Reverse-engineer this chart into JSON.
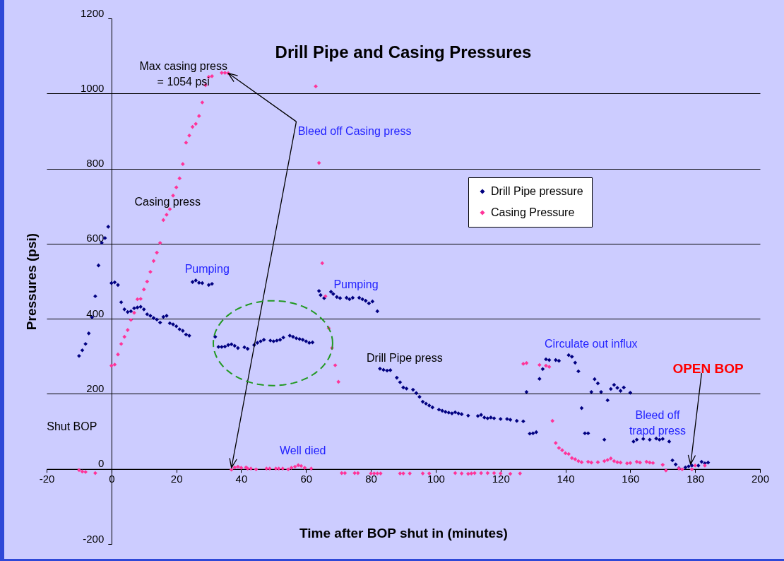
{
  "chart_data": {
    "type": "scatter",
    "title": "Drill Pipe and Casing Pressures",
    "xlabel": "Time after BOP shut in (minutes)",
    "ylabel": "Pressures (psi)",
    "xlim": [
      -20,
      200
    ],
    "xticks": [
      -20,
      0,
      20,
      40,
      60,
      80,
      100,
      120,
      140,
      160,
      180,
      200
    ],
    "ylim": [
      -200,
      1200
    ],
    "yticks": [
      -200,
      0,
      200,
      400,
      600,
      800,
      1000,
      1200
    ],
    "grid": "y",
    "legend": "top right",
    "marker": "diamond",
    "annotations": [
      "Casing press",
      "Pumping",
      "Max casing press\n= 1054 psi",
      "Bleed off Casing press",
      "Pumping",
      "Drill Pipe press",
      "Circulate out influx",
      "OPEN BOP",
      "Bleed off\ntrapd press",
      "Shut BOP",
      "Well died"
    ],
    "series": [
      {
        "name": "Drill Pipe pressure",
        "color": "#000080",
        "x": [
          -10,
          -9,
          -8,
          -7,
          -6,
          -5,
          -4,
          -3,
          -2,
          -1,
          0,
          1,
          2,
          3,
          4,
          5,
          6,
          7,
          8,
          9,
          10,
          11,
          12,
          13,
          14,
          15,
          16,
          17,
          18,
          19,
          20,
          21,
          22,
          23,
          24,
          25,
          26,
          27,
          28,
          30,
          31,
          32,
          33,
          34,
          35,
          36,
          37,
          38,
          39,
          41,
          42,
          44,
          45,
          46,
          47,
          49,
          50,
          51,
          52,
          53,
          55,
          56,
          57,
          58,
          59,
          60,
          61,
          62,
          64,
          64.5,
          65.6,
          67.7,
          68.4,
          69.5,
          70.5,
          72.5,
          73.4,
          74.4,
          76.4,
          77.4,
          78.4,
          79.4,
          80.5,
          82,
          82.8,
          83.9,
          85,
          86,
          88,
          89,
          90,
          91,
          93,
          94,
          95,
          96,
          97,
          98,
          99,
          101,
          102,
          103,
          104,
          105,
          106,
          107,
          108,
          110,
          113,
          114,
          115,
          116,
          117,
          118,
          120,
          122,
          123,
          125,
          127,
          128,
          129,
          130,
          131,
          132,
          133,
          134,
          135,
          137,
          138,
          141,
          142,
          143,
          144,
          145,
          146,
          147,
          148,
          149,
          150,
          151,
          152,
          153,
          154,
          155,
          156,
          157,
          158,
          160,
          161,
          162,
          164,
          166,
          168,
          169,
          170,
          172,
          173,
          174,
          175,
          177,
          178,
          179,
          181,
          182,
          183,
          184
        ],
        "values": [
          301,
          316,
          333,
          361,
          404,
          460,
          542,
          602,
          615,
          645,
          495,
          497,
          490,
          444,
          425,
          418,
          420,
          428,
          430,
          432,
          425,
          412,
          408,
          402,
          398,
          390,
          405,
          408,
          388,
          385,
          380,
          372,
          368,
          358,
          355,
          498,
          502,
          496,
          495,
          490,
          493,
          352,
          325,
          325,
          326,
          330,
          332,
          328,
          322,
          324,
          320,
          330,
          336,
          340,
          344,
          342,
          340,
          342,
          344,
          350,
          355,
          352,
          348,
          346,
          344,
          340,
          336,
          337,
          474,
          463,
          455,
          472,
          466,
          458,
          455,
          456,
          452,
          456,
          456,
          452,
          448,
          441,
          446,
          420,
          267,
          264,
          262,
          263,
          243,
          231,
          217,
          214,
          211,
          202,
          192,
          179,
          174,
          169,
          164,
          158,
          155,
          152,
          150,
          148,
          151,
          148,
          146,
          142,
          141,
          144,
          137,
          135,
          137,
          135,
          133,
          133,
          131,
          128,
          127,
          205,
          94,
          95,
          98,
          240,
          266,
          292,
          290,
          290,
          288,
          303,
          299,
          283,
          260,
          162,
          95,
          95,
          205,
          239,
          228,
          205,
          78,
          183,
          213,
          224,
          216,
          208,
          217,
          203,
          73,
          78,
          80,
          78,
          81,
          78,
          80,
          73,
          23,
          12,
          2,
          4,
          7,
          9,
          9,
          19,
          15,
          17
        ]
      },
      {
        "name": "Casing Pressure",
        "color": "#ff3399",
        "x": [
          -10,
          -9,
          -8,
          -5,
          0,
          1,
          2,
          3,
          4,
          5,
          6,
          7,
          8,
          9,
          10,
          11,
          12,
          13,
          14,
          15,
          16,
          17,
          18,
          19,
          20,
          21,
          22,
          23,
          24,
          25,
          26,
          27,
          28,
          29,
          30,
          31,
          34,
          35,
          36,
          37,
          38,
          39,
          40,
          41.5,
          42,
          43,
          44.6,
          47.8,
          48.8,
          50.7,
          51.6,
          52.8,
          54.5,
          55.5,
          56.6,
          57.6,
          58.5,
          59.6,
          61.6,
          63,
          64,
          65,
          66,
          67,
          68,
          69,
          70,
          71,
          72,
          75,
          76,
          80,
          81,
          82,
          83,
          89,
          90,
          92,
          96,
          98,
          106,
          108,
          110,
          111,
          112,
          114,
          116,
          118,
          120,
          123,
          126,
          127,
          128,
          132,
          134,
          135,
          136,
          137,
          138,
          139,
          140,
          141,
          142,
          143,
          144,
          145,
          147,
          148,
          150,
          152,
          153,
          154,
          155,
          156,
          157,
          159,
          160,
          162,
          163,
          165,
          166,
          167,
          170,
          171,
          175,
          176,
          179,
          180,
          183
        ],
        "values": [
          -3,
          -7,
          -8,
          -11,
          275,
          278,
          305,
          333,
          352,
          370,
          397,
          416,
          452,
          453,
          478,
          499,
          525,
          554,
          576,
          602,
          663,
          677,
          692,
          728,
          750,
          774,
          812,
          869,
          888,
          911,
          919,
          940,
          976,
          1022,
          1044,
          1046,
          1055,
          1055,
          1054,
          -2,
          4,
          6,
          3,
          4,
          1,
          1,
          -1,
          1,
          1,
          1,
          1,
          1,
          -1,
          3,
          6,
          10,
          8,
          3,
          1,
          1019,
          815,
          548,
          460,
          375,
          322,
          276,
          232,
          -11,
          -11,
          -11,
          -11,
          -12,
          -12,
          -12,
          -12,
          -12,
          -12,
          -12,
          -12,
          -12,
          -11,
          -12,
          -13,
          -12,
          -11,
          -11,
          -11,
          -11,
          -12,
          -13,
          -12,
          280,
          282,
          277,
          275,
          272,
          128,
          69,
          56,
          50,
          42,
          40,
          29,
          26,
          21,
          18,
          19,
          17,
          18,
          21,
          24,
          28,
          21,
          18,
          17,
          15,
          16,
          19,
          17,
          19,
          17,
          16,
          11,
          -4,
          1,
          -1,
          -1,
          9,
          9
        ]
      }
    ]
  }
}
